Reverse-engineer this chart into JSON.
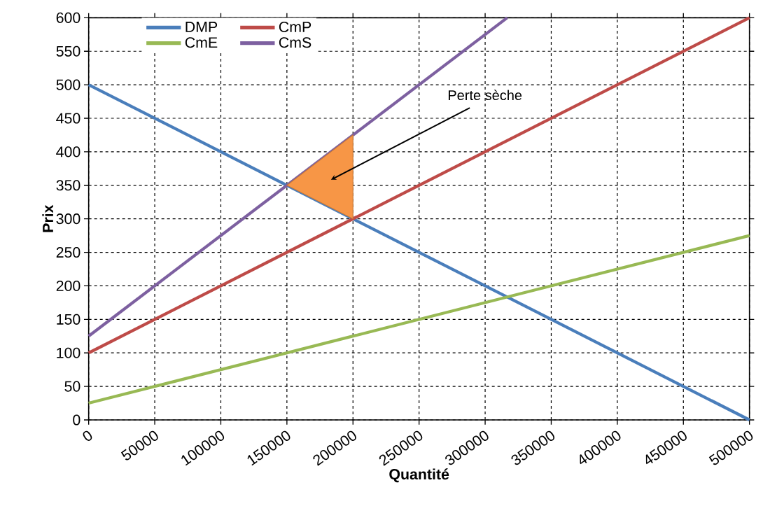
{
  "chart_data": {
    "type": "line",
    "xlabel": "Quantité",
    "ylabel": "Prix",
    "x": [
      0,
      500000
    ],
    "series": [
      {
        "name": "DMP",
        "color": "#4a7ebb",
        "values": [
          500,
          0
        ]
      },
      {
        "name": "CmP",
        "color": "#be4b48",
        "values": [
          100,
          600
        ]
      },
      {
        "name": "CmE",
        "color": "#98b954",
        "values": [
          25,
          275
        ]
      },
      {
        "name": "CmS",
        "color": "#7d60a0",
        "x": [
          0,
          316667
        ],
        "values": [
          125,
          600
        ]
      },
      {
        "type": "area",
        "color": "#f79646",
        "x": [
          150000,
          200000,
          200000
        ],
        "values": [
          350,
          425,
          300
        ]
      }
    ],
    "xlim": [
      0,
      500000
    ],
    "ylim": [
      0,
      600
    ],
    "xticks": [
      0,
      50000,
      100000,
      150000,
      200000,
      250000,
      300000,
      350000,
      400000,
      450000,
      500000
    ],
    "yticks": [
      0,
      50,
      100,
      150,
      200,
      250,
      300,
      350,
      400,
      450,
      500,
      550,
      600
    ],
    "grid": true,
    "legend": "top",
    "line_style": "solid",
    "marker": "none",
    "annotations": [
      "Perte sèche"
    ]
  }
}
